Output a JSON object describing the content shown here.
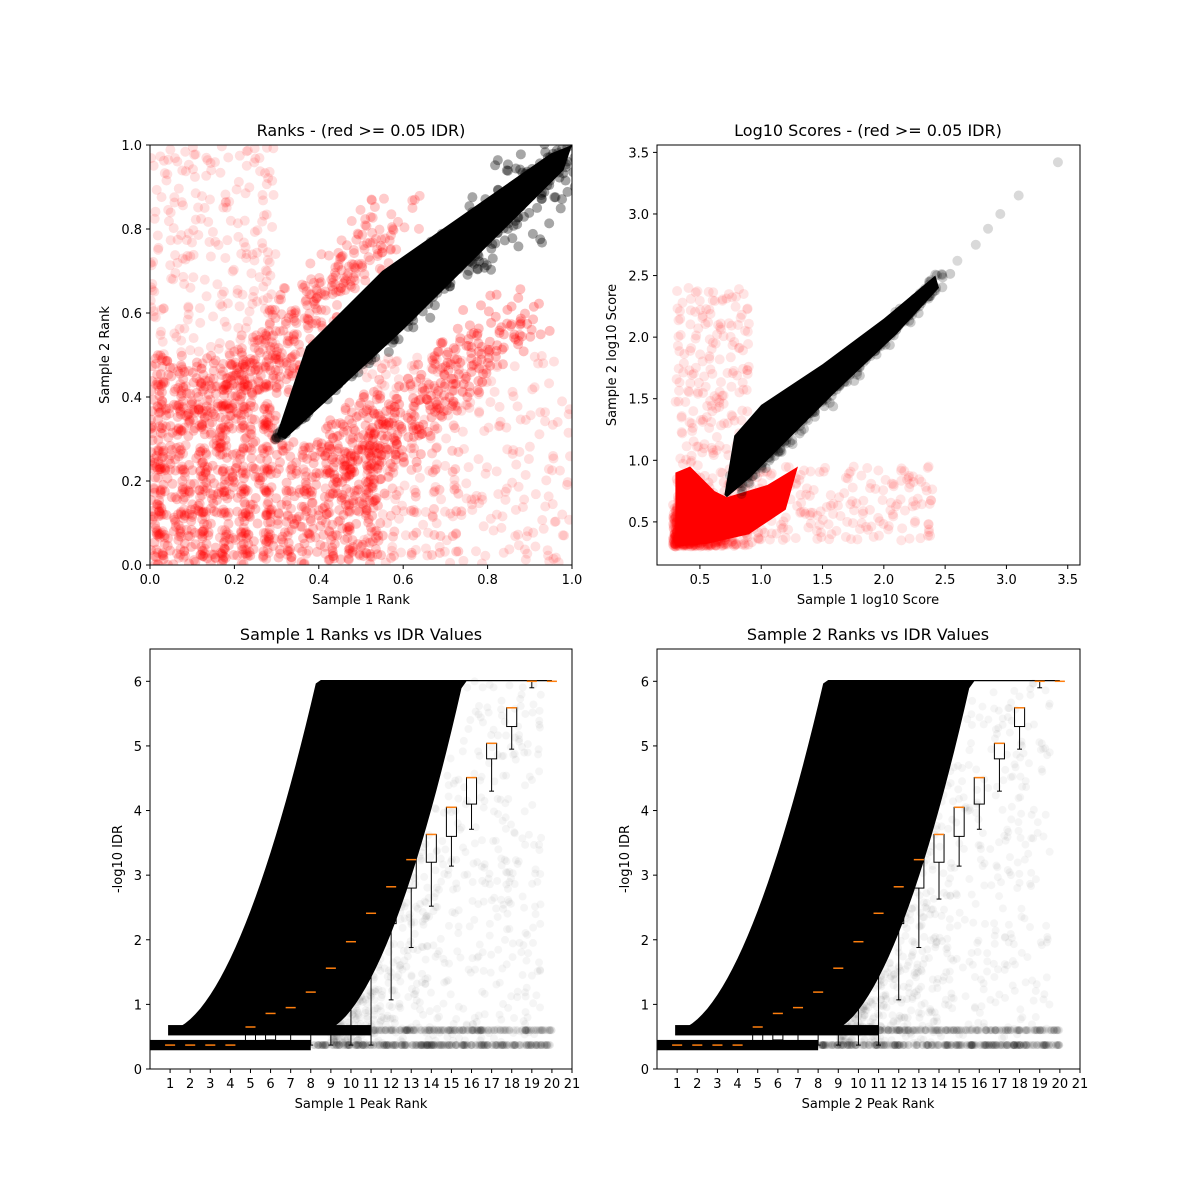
{
  "figure": {
    "background": "#ffffff"
  },
  "colors": {
    "above_threshold": "#000000",
    "below_threshold": "#ff0000",
    "median": "#ff7f0e",
    "frame": "#000000"
  },
  "chart_data": [
    {
      "id": "ranks",
      "type": "scatter",
      "title": "Ranks - (red >= 0.05 IDR)",
      "xlabel": "Sample 1 Rank",
      "ylabel": "Sample 2 Rank",
      "xlim": [
        0,
        1
      ],
      "ylim": [
        0,
        1
      ],
      "xticks": [
        "0.0",
        "0.2",
        "0.4",
        "0.6",
        "0.8",
        "1.0"
      ],
      "yticks": [
        "0.0",
        "0.2",
        "0.4",
        "0.6",
        "0.8",
        "1.0"
      ],
      "xtick_values": [
        0,
        0.2,
        0.4,
        0.6,
        0.8,
        1.0
      ],
      "ytick_values": [
        0,
        0.2,
        0.4,
        0.6,
        0.8,
        1.0
      ],
      "grid": false,
      "series": [
        {
          "color": "#000000",
          "region": "diagonal band from (0.3, 0.3) to (1.0, 1.0)"
        },
        {
          "color": "#ff0000",
          "region": "x < 0.5 or y < 0.5 outside diagonal band"
        }
      ]
    },
    {
      "id": "scores",
      "type": "scatter",
      "title": "Log10 Scores - (red >= 0.05 IDR)",
      "xlabel": "Sample 1 log10 Score",
      "ylabel": "Sample 2 log10 Score",
      "xlim": [
        0.15,
        3.6
      ],
      "ylim": [
        0.15,
        3.56
      ],
      "xticks": [
        "0.5",
        "1.0",
        "1.5",
        "2.0",
        "2.5",
        "3.0",
        "3.5"
      ],
      "yticks": [
        "0.5",
        "1.0",
        "1.5",
        "2.0",
        "2.5",
        "3.0",
        "3.5"
      ],
      "xtick_values": [
        0.5,
        1.0,
        1.5,
        2.0,
        2.5,
        3.0,
        3.5
      ],
      "ytick_values": [
        0.5,
        1.0,
        1.5,
        2.0,
        2.5,
        3.0,
        3.5
      ],
      "grid": false,
      "series": [
        {
          "color": "#000000",
          "region": "diagonal band from (0.7, 0.7) to (2.45, 2.45), outliers up to (3.42, 3.42)"
        },
        {
          "color": "#ff0000",
          "region": "low scores 0.3-1.3 and scattered off-diagonal points"
        }
      ]
    },
    {
      "id": "rank1_idr",
      "type": "scatter",
      "title": "Sample 1 Ranks vs IDR Values",
      "xlabel": "Sample 1 Peak Rank",
      "ylabel": "-log10 IDR",
      "xlim": [
        0,
        21
      ],
      "ylim": [
        0,
        6.5
      ],
      "xticks": [
        "1",
        "2",
        "3",
        "4",
        "5",
        "6",
        "7",
        "8",
        "9",
        "10",
        "11",
        "12",
        "13",
        "14",
        "15",
        "16",
        "17",
        "18",
        "19",
        "20",
        "21"
      ],
      "yticks": [
        "0",
        "1",
        "2",
        "3",
        "4",
        "5",
        "6"
      ],
      "ytick_values": [
        0,
        1,
        2,
        3,
        4,
        5,
        6
      ],
      "grid": false,
      "box_medians": [
        0.37,
        0.37,
        0.37,
        0.37,
        0.65,
        0.86,
        0.95,
        1.19,
        1.56,
        1.97,
        2.41,
        2.82,
        3.24,
        3.63,
        4.05,
        4.51,
        5.04,
        5.59,
        6.0,
        6.0
      ],
      "box_lower_whisker": [
        0.37,
        0.37,
        0.37,
        0.37,
        0.37,
        0.37,
        0.37,
        0.37,
        0.37,
        0.37,
        0.37,
        1.07,
        1.88,
        2.52,
        3.14,
        3.71,
        4.3,
        4.95,
        5.9,
        6.0
      ],
      "box_q1": [
        0.37,
        0.37,
        0.37,
        0.37,
        0.37,
        0.45,
        0.55,
        0.65,
        0.8,
        1.15,
        1.7,
        2.25,
        2.8,
        3.2,
        3.6,
        4.1,
        4.8,
        5.3,
        6.0,
        6.0
      ]
    },
    {
      "id": "rank2_idr",
      "type": "scatter",
      "title": "Sample 2 Ranks vs IDR Values",
      "xlabel": "Sample 2 Peak Rank",
      "ylabel": "-log10 IDR",
      "xlim": [
        0,
        21
      ],
      "ylim": [
        0,
        6.5
      ],
      "xticks": [
        "1",
        "2",
        "3",
        "4",
        "5",
        "6",
        "7",
        "8",
        "9",
        "10",
        "11",
        "12",
        "13",
        "14",
        "15",
        "16",
        "17",
        "18",
        "19",
        "20",
        "21"
      ],
      "yticks": [
        "0",
        "1",
        "2",
        "3",
        "4",
        "5",
        "6"
      ],
      "ytick_values": [
        0,
        1,
        2,
        3,
        4,
        5,
        6
      ],
      "grid": false,
      "box_medians": [
        0.37,
        0.37,
        0.37,
        0.37,
        0.65,
        0.86,
        0.95,
        1.19,
        1.56,
        1.97,
        2.41,
        2.82,
        3.24,
        3.63,
        4.05,
        4.51,
        5.04,
        5.59,
        6.0,
        6.0
      ],
      "box_lower_whisker": [
        0.37,
        0.37,
        0.37,
        0.37,
        0.37,
        0.37,
        0.37,
        0.37,
        0.37,
        0.37,
        0.37,
        1.07,
        1.88,
        2.63,
        3.14,
        3.71,
        4.3,
        4.95,
        5.9,
        6.0
      ],
      "box_q1": [
        0.37,
        0.37,
        0.37,
        0.37,
        0.37,
        0.45,
        0.55,
        0.65,
        0.8,
        1.15,
        1.7,
        2.25,
        2.8,
        3.2,
        3.6,
        4.1,
        4.8,
        5.3,
        6.0,
        6.0
      ]
    }
  ]
}
